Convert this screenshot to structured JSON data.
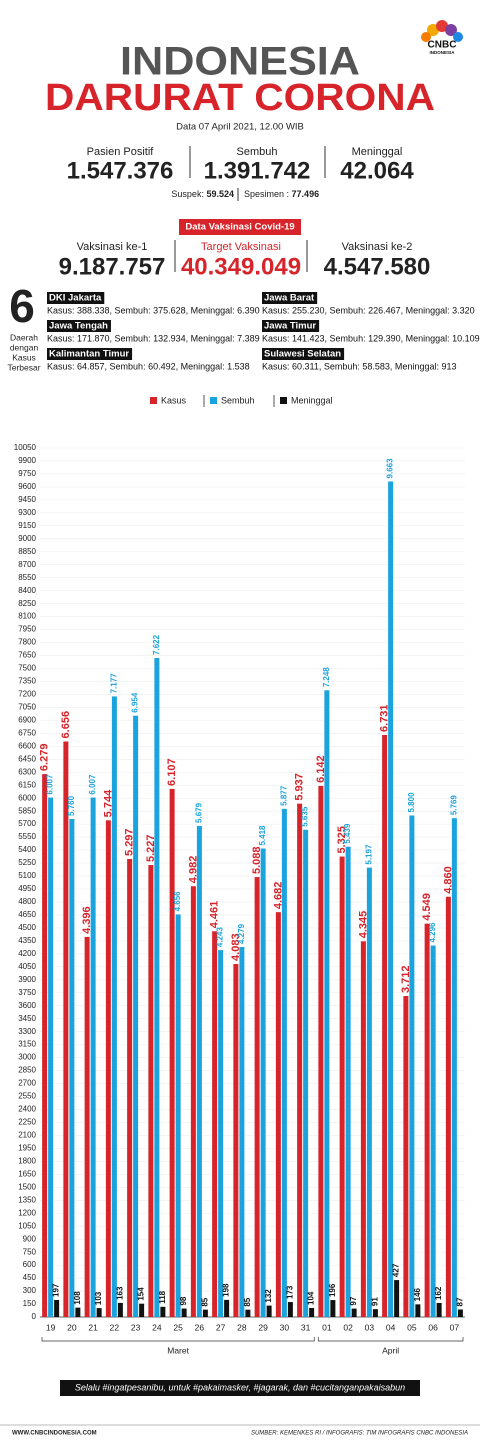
{
  "logo": {
    "name": "CNBC",
    "sub": "INDONESIA"
  },
  "header": {
    "title_line1": "INDONESIA",
    "title_line2": "DARURAT CORONA",
    "date": "Data 07 April 2021, 12.00 WIB"
  },
  "stats": [
    {
      "label": "Pasien Positif",
      "value": "1.547.376"
    },
    {
      "label": "Sembuh",
      "value": "1.391.742"
    },
    {
      "label": "Meninggal",
      "value": "42.064"
    }
  ],
  "extra": [
    {
      "label": "Suspek:",
      "value": "59.524"
    },
    {
      "label": "Spesimen :",
      "value": "77.496"
    }
  ],
  "vaccine": {
    "title": "Data Vaksinasi Covid-19",
    "items": [
      {
        "label": "Vaksinasi ke-1",
        "value": "9.187.757"
      },
      {
        "label": "Target Vaksinasi",
        "value": "40.349.049"
      },
      {
        "label": "Vaksinasi ke-2",
        "value": "4.547.580"
      }
    ]
  },
  "regions": {
    "count": "6",
    "caption": [
      "Daerah",
      "dengan",
      "Kasus",
      "Terbesar"
    ],
    "items": [
      {
        "name": "DKI Jakarta",
        "text": "Kasus: 388.338, Sembuh: 375.628, Meninggal: 6.390"
      },
      {
        "name": "Jawa Barat",
        "text": "Kasus: 255.230, Sembuh: 226.467, Meninggal: 3.320"
      },
      {
        "name": "Jawa Tengah",
        "text": "Kasus: 171.870, Sembuh: 132.934, Meninggal: 7.389"
      },
      {
        "name": "Jawa Timur",
        "text": "Kasus: 141.423, Sembuh: 129.390, Meninggal: 10.109"
      },
      {
        "name": "Kalimantan Timur",
        "text": "Kasus: 64.857, Sembuh: 60.492, Meninggal: 1.538"
      },
      {
        "name": "Sulawesi Selatan",
        "text": "Kasus: 60.311, Sembuh: 58.583, Meninggal: 913"
      }
    ]
  },
  "chart_data": {
    "type": "bar",
    "categories": [
      "19",
      "20",
      "21",
      "22",
      "23",
      "24",
      "25",
      "26",
      "27",
      "28",
      "29",
      "30",
      "31",
      "01",
      "02",
      "03",
      "04",
      "05",
      "06",
      "07"
    ],
    "group_labels": [
      "Maret",
      "April"
    ],
    "series": [
      {
        "name": "Kasus",
        "color": "#d7242a",
        "values": [
          6279,
          6656,
          4396,
          5744,
          5297,
          5227,
          6107,
          4982,
          4461,
          4083,
          5088,
          4682,
          5937,
          6142,
          5325,
          4345,
          6731,
          3712,
          4549,
          4860
        ],
        "value_labels": [
          "6.279",
          "6.656",
          "4.396",
          "5.744",
          "5.297",
          "5.227",
          "6.107",
          "4.982",
          "4.461",
          "4.083",
          "5.088",
          "4.682",
          "5.937",
          "6.142",
          "5.325",
          "4.345",
          "6.731",
          "3.712",
          "4.549",
          "4.860"
        ]
      },
      {
        "name": "Sembuh",
        "color": "#1aa3dd",
        "values": [
          6007,
          5760,
          6007,
          7177,
          6954,
          7622,
          4656,
          5679,
          4243,
          4279,
          5418,
          5877,
          5635,
          7248,
          5439,
          5197,
          9663,
          5800,
          4296,
          5769
        ],
        "value_labels": [
          "6.007",
          "5.760",
          "6.007",
          "7.177",
          "6.954",
          "7.622",
          "4.656",
          "5.679",
          "4.243",
          "4.279",
          "5.418",
          "5.877",
          "5.635",
          "7.248",
          "5.439",
          "5.197",
          "9.663",
          "5.800",
          "4.296",
          "5.769"
        ]
      },
      {
        "name": "Meninggal",
        "color": "#111111",
        "values": [
          197,
          108,
          103,
          163,
          154,
          118,
          98,
          85,
          198,
          85,
          132,
          173,
          104,
          196,
          97,
          91,
          427,
          146,
          162,
          87
        ]
      }
    ],
    "ylim": [
      0,
      10050
    ],
    "yticks": [
      0,
      150,
      300,
      450,
      600,
      750,
      900,
      1050,
      1200,
      1350,
      1500,
      1650,
      1800,
      1950,
      2100,
      2250,
      2400,
      2550,
      2700,
      2850,
      3000,
      3150,
      3300,
      3450,
      3600,
      3750,
      3900,
      4050,
      4200,
      4350,
      4500,
      4650,
      4800,
      4950,
      5100,
      5250,
      5400,
      5550,
      5700,
      5850,
      6000,
      6150,
      6300,
      6450,
      6600,
      6750,
      6900,
      7050,
      7200,
      7350,
      7500,
      7650,
      7800,
      7950,
      8100,
      8250,
      8400,
      8550,
      8700,
      8850,
      9000,
      9150,
      9300,
      9450,
      9600,
      9750,
      9900,
      10050
    ],
    "grid": true
  },
  "footer": {
    "slogan": "Selalu #ingatpesanibu, untuk #pakaimasker, #jagarak, dan #cucitanganpakaisabun",
    "site": "WWW.CNBCINDONESIA.COM",
    "source": "SUMBER: KEMENKES RI / INFOGRAFIS: TIM INFOGRAFIS CNBC INDONESIA"
  }
}
